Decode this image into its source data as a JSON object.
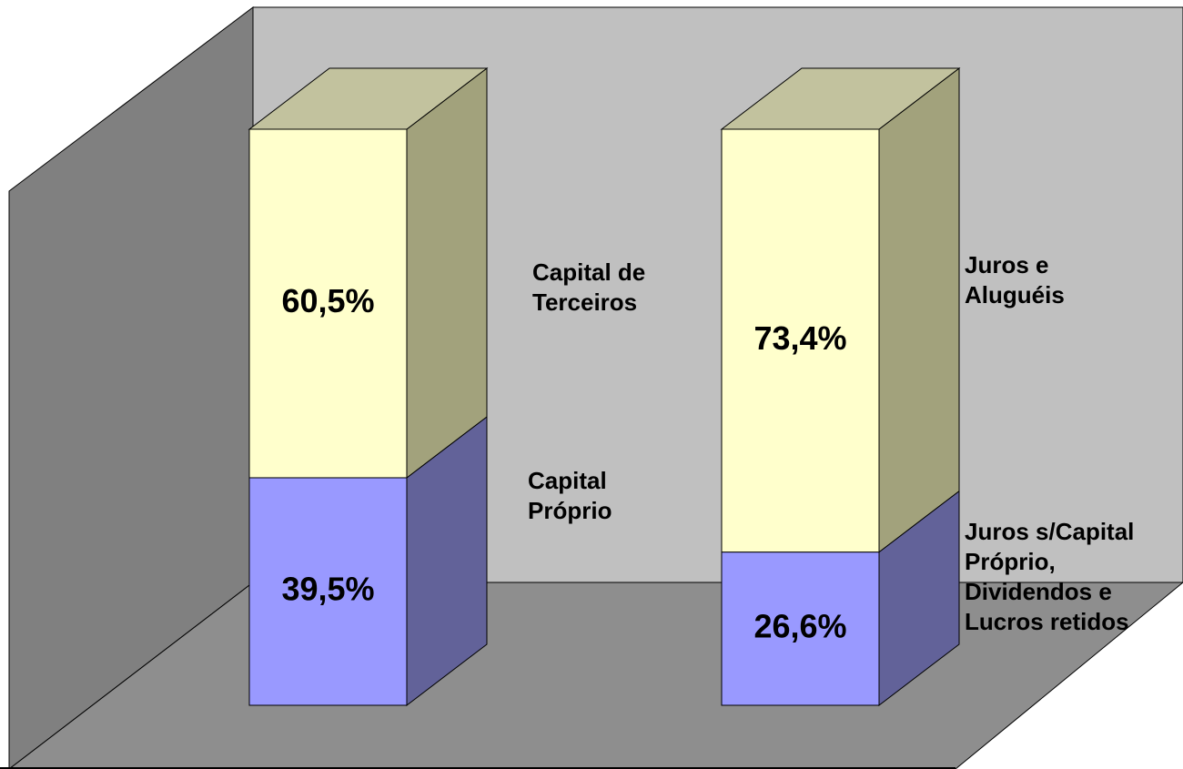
{
  "chart_data": [
    {
      "type": "bar",
      "stacked": true,
      "categories": [
        null
      ],
      "ylim": [
        0,
        100
      ],
      "series": [
        {
          "name": "Capital Próprio",
          "color": "#9999ff",
          "side_color": "#626299",
          "values": [
            39.5
          ],
          "value_labels": [
            "39,5%"
          ]
        },
        {
          "name": "Capital de Terceiros",
          "color": "#ffffcc",
          "side_color": "#a2a27c",
          "top_color": "#c2c29e",
          "values": [
            60.5
          ],
          "value_labels": [
            "60,5%"
          ]
        }
      ]
    },
    {
      "type": "bar",
      "stacked": true,
      "categories": [
        null
      ],
      "ylim": [
        0,
        100
      ],
      "series": [
        {
          "name": "Juros s/Capital Próprio, Dividendos e Lucros retidos",
          "color": "#9999ff",
          "side_color": "#626299",
          "values": [
            26.6
          ],
          "value_labels": [
            "26,6%"
          ]
        },
        {
          "name": "Juros e Aluguéis",
          "color": "#ffffcc",
          "side_color": "#a2a27c",
          "top_color": "#c2c29e",
          "values": [
            73.4
          ],
          "value_labels": [
            "73,4%"
          ]
        }
      ]
    }
  ]
}
